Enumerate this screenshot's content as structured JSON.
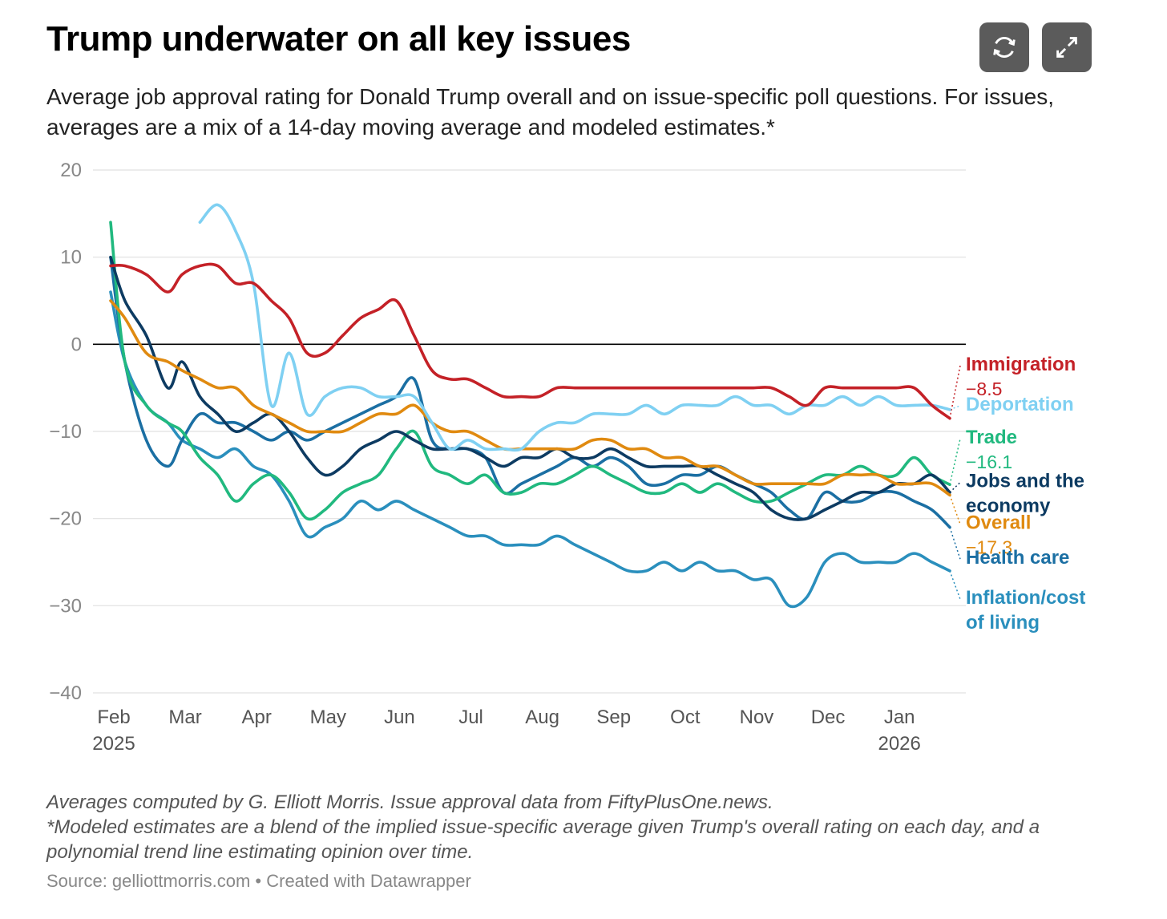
{
  "header": {
    "title": "Trump underwater on all key issues",
    "subtitle": "Average job approval rating for Donald Trump overall and on issue-specific poll questions. For issues, averages are a mix of a 14-day moving average and modeled estimates.*"
  },
  "buttons": {
    "refresh_icon": "refresh-icon",
    "expand_icon": "expand-icon"
  },
  "footer": {
    "note1": "Averages computed by G. Elliott Morris. Issue approval data from FiftyPlusOne.news.",
    "note2": "*Modeled estimates are a blend of the implied issue-specific average given Trump's overall rating on each day, and a polynomial trend line estimating opinion over time.",
    "source": "Source: gelliottmorris.com • Created with Datawrapper"
  },
  "chart_data": {
    "type": "line",
    "title": "Trump underwater on all key issues",
    "xlabel": "",
    "ylabel": "",
    "ylim": [
      -40,
      20
    ],
    "yticks": [
      20,
      10,
      0,
      -10,
      -20,
      -30,
      -40
    ],
    "ytick_labels": [
      "20",
      "10",
      "0",
      "−10",
      "−20",
      "−30",
      "−40"
    ],
    "xlim": [
      1,
      12.75
    ],
    "x_ticks": [
      {
        "x": 1,
        "label": "Feb",
        "year": "2025"
      },
      {
        "x": 2,
        "label": "Mar",
        "year": ""
      },
      {
        "x": 3,
        "label": "Apr",
        "year": ""
      },
      {
        "x": 4,
        "label": "May",
        "year": ""
      },
      {
        "x": 5,
        "label": "Jun",
        "year": ""
      },
      {
        "x": 6,
        "label": "Jul",
        "year": ""
      },
      {
        "x": 7,
        "label": "Aug",
        "year": ""
      },
      {
        "x": 8,
        "label": "Sep",
        "year": ""
      },
      {
        "x": 9,
        "label": "Oct",
        "year": ""
      },
      {
        "x": 10,
        "label": "Nov",
        "year": ""
      },
      {
        "x": 11,
        "label": "Dec",
        "year": ""
      },
      {
        "x": 12,
        "label": "Jan",
        "year": "2026"
      }
    ],
    "x_unit": "months since Feb 1, 2025 (Feb = 1)",
    "series": [
      {
        "name": "Inflation/cost of living",
        "label": "Inflation/cost of living",
        "value_label": "",
        "color": "#2a8fbd",
        "x": [
          1.0,
          1.2,
          1.5,
          1.8,
          2.0,
          2.25,
          2.5,
          2.75,
          3.0,
          3.25,
          3.5,
          3.75,
          4.0,
          4.25,
          4.5,
          4.75,
          5.0,
          5.25,
          5.5,
          5.75,
          6.0,
          6.25,
          6.5,
          6.75,
          7.0,
          7.25,
          7.5,
          7.75,
          8.0,
          8.25,
          8.5,
          8.75,
          9.0,
          9.25,
          9.5,
          9.75,
          10.0,
          10.25,
          10.5,
          10.75,
          11.0,
          11.25,
          11.5,
          11.75,
          12.0,
          12.25,
          12.5,
          12.75
        ],
        "y": [
          6,
          -2,
          -7,
          -9,
          -11,
          -12,
          -13,
          -12,
          -14,
          -15,
          -18,
          -22,
          -21,
          -20,
          -18,
          -19,
          -18,
          -19,
          -20,
          -21,
          -22,
          -22,
          -23,
          -23,
          -23,
          -22,
          -23,
          -24,
          -25,
          -26,
          -26,
          -25,
          -26,
          -25,
          -26,
          -26,
          -27,
          -27,
          -30,
          -29,
          -25,
          -24,
          -25,
          -25,
          -25,
          -24,
          -25,
          -26
        ]
      },
      {
        "name": "Health care",
        "label": "Health care",
        "value_label": "",
        "color": "#1b6fa3",
        "x": [
          1.0,
          1.2,
          1.5,
          1.8,
          2.0,
          2.25,
          2.5,
          2.75,
          3.0,
          3.25,
          3.5,
          3.75,
          4.0,
          4.25,
          4.5,
          4.75,
          5.0,
          5.25,
          5.5,
          5.75,
          6.0,
          6.25,
          6.5,
          6.75,
          7.0,
          7.25,
          7.5,
          7.75,
          8.0,
          8.25,
          8.5,
          8.75,
          9.0,
          9.25,
          9.5,
          9.75,
          10.0,
          10.25,
          10.5,
          10.75,
          11.0,
          11.25,
          11.5,
          11.75,
          12.0,
          12.25,
          12.5,
          12.75
        ],
        "y": [
          10,
          -2,
          -11,
          -14,
          -11,
          -8,
          -9,
          -9,
          -10,
          -11,
          -10,
          -11,
          -10,
          -9,
          -8,
          -7,
          -6,
          -4,
          -11,
          -12,
          -12,
          -13,
          -17,
          -16,
          -15,
          -14,
          -13,
          -14,
          -13,
          -14,
          -16,
          -16,
          -15,
          -15,
          -14,
          -15,
          -16,
          -17,
          -19,
          -20,
          -17,
          -18,
          -18,
          -17,
          -17,
          -18,
          -19,
          -21
        ]
      },
      {
        "name": "Trade",
        "label": "Trade",
        "value_label": "−16.1",
        "color": "#21b97f",
        "x": [
          1.0,
          1.2,
          1.5,
          1.8,
          2.0,
          2.25,
          2.5,
          2.75,
          3.0,
          3.25,
          3.5,
          3.75,
          4.0,
          4.25,
          4.5,
          4.75,
          5.0,
          5.25,
          5.5,
          5.75,
          6.0,
          6.25,
          6.5,
          6.75,
          7.0,
          7.25,
          7.5,
          7.75,
          8.0,
          8.25,
          8.5,
          8.75,
          9.0,
          9.25,
          9.5,
          9.75,
          10.0,
          10.25,
          10.5,
          10.75,
          11.0,
          11.25,
          11.5,
          11.75,
          12.0,
          12.25,
          12.5,
          12.75
        ],
        "y": [
          14,
          -2,
          -7,
          -9,
          -10,
          -13,
          -15,
          -18,
          -16,
          -15,
          -17,
          -20,
          -19,
          -17,
          -16,
          -15,
          -12,
          -10,
          -14,
          -15,
          -16,
          -15,
          -17,
          -17,
          -16,
          -16,
          -15,
          -14,
          -15,
          -16,
          -17,
          -17,
          -16,
          -17,
          -16,
          -17,
          -18,
          -18,
          -17,
          -16,
          -15,
          -15,
          -14,
          -15,
          -15,
          -13,
          -15,
          -16.1
        ]
      },
      {
        "name": "Jobs and the economy",
        "label": "Jobs and the economy",
        "value_label": "",
        "color": "#0d3b62",
        "x": [
          1.0,
          1.2,
          1.5,
          1.8,
          2.0,
          2.25,
          2.5,
          2.75,
          3.0,
          3.25,
          3.5,
          3.75,
          4.0,
          4.25,
          4.5,
          4.75,
          5.0,
          5.25,
          5.5,
          5.75,
          6.0,
          6.25,
          6.5,
          6.75,
          7.0,
          7.25,
          7.5,
          7.75,
          8.0,
          8.25,
          8.5,
          8.75,
          9.0,
          9.25,
          9.5,
          9.75,
          10.0,
          10.25,
          10.5,
          10.75,
          11.0,
          11.25,
          11.5,
          11.75,
          12.0,
          12.25,
          12.5,
          12.75
        ],
        "y": [
          10,
          5,
          1,
          -5,
          -2,
          -6,
          -8,
          -10,
          -9,
          -8,
          -10,
          -13,
          -15,
          -14,
          -12,
          -11,
          -10,
          -11,
          -12,
          -12,
          -12,
          -13,
          -14,
          -13,
          -13,
          -12,
          -13,
          -13,
          -12,
          -13,
          -14,
          -14,
          -14,
          -14,
          -15,
          -16,
          -17,
          -19,
          -20,
          -20,
          -19,
          -18,
          -17,
          -17,
          -16,
          -16,
          -15,
          -17
        ]
      },
      {
        "name": "Overall",
        "label": "Overall",
        "value_label": "−17.3",
        "color": "#e08a10",
        "x": [
          1.0,
          1.2,
          1.5,
          1.8,
          2.0,
          2.25,
          2.5,
          2.75,
          3.0,
          3.25,
          3.5,
          3.75,
          4.0,
          4.25,
          4.5,
          4.75,
          5.0,
          5.25,
          5.5,
          5.75,
          6.0,
          6.25,
          6.5,
          6.75,
          7.0,
          7.25,
          7.5,
          7.75,
          8.0,
          8.25,
          8.5,
          8.75,
          9.0,
          9.25,
          9.5,
          9.75,
          10.0,
          10.25,
          10.5,
          10.75,
          11.0,
          11.25,
          11.5,
          11.75,
          12.0,
          12.25,
          12.5,
          12.75
        ],
        "y": [
          5,
          3,
          -1,
          -2,
          -3,
          -4,
          -5,
          -5,
          -7,
          -8,
          -9,
          -10,
          -10,
          -10,
          -9,
          -8,
          -8,
          -7,
          -9,
          -10,
          -10,
          -11,
          -12,
          -12,
          -12,
          -12,
          -12,
          -11,
          -11,
          -12,
          -12,
          -13,
          -13,
          -14,
          -14,
          -15,
          -16,
          -16,
          -16,
          -16,
          -16,
          -15,
          -15,
          -15,
          -16,
          -16,
          -16,
          -17.3
        ]
      },
      {
        "name": "Deportation",
        "label": "Deportation",
        "value_label": "",
        "color": "#7fd0f2",
        "x": [
          2.25,
          2.5,
          2.75,
          3.0,
          3.25,
          3.5,
          3.75,
          4.0,
          4.25,
          4.5,
          4.75,
          5.0,
          5.25,
          5.5,
          5.75,
          6.0,
          6.25,
          6.5,
          6.75,
          7.0,
          7.25,
          7.5,
          7.75,
          8.0,
          8.25,
          8.5,
          8.75,
          9.0,
          9.25,
          9.5,
          9.75,
          10.0,
          10.25,
          10.5,
          10.75,
          11.0,
          11.25,
          11.5,
          11.75,
          12.0,
          12.25,
          12.5,
          12.75
        ],
        "y": [
          14,
          16,
          13,
          7,
          -7,
          -1,
          -8,
          -6,
          -5,
          -5,
          -6,
          -6,
          -6,
          -9,
          -12,
          -11,
          -12,
          -12,
          -12,
          -10,
          -9,
          -9,
          -8,
          -8,
          -8,
          -7,
          -8,
          -7,
          -7,
          -7,
          -6,
          -7,
          -7,
          -8,
          -7,
          -7,
          -6,
          -7,
          -6,
          -7,
          -7,
          -7,
          -7.5
        ]
      },
      {
        "name": "Immigration",
        "label": "Immigration",
        "value_label": "−8.5",
        "color": "#c42127",
        "x": [
          1.0,
          1.2,
          1.5,
          1.8,
          2.0,
          2.25,
          2.5,
          2.75,
          3.0,
          3.25,
          3.5,
          3.75,
          4.0,
          4.25,
          4.5,
          4.75,
          5.0,
          5.25,
          5.5,
          5.75,
          6.0,
          6.25,
          6.5,
          6.75,
          7.0,
          7.25,
          7.5,
          7.75,
          8.0,
          8.25,
          8.5,
          8.75,
          9.0,
          9.25,
          9.5,
          9.75,
          10.0,
          10.25,
          10.5,
          10.75,
          11.0,
          11.25,
          11.5,
          11.75,
          12.0,
          12.25,
          12.5,
          12.75
        ],
        "y": [
          9,
          9,
          8,
          6,
          8,
          9,
          9,
          7,
          7,
          5,
          3,
          -1,
          -1,
          1,
          3,
          4,
          5,
          1,
          -3,
          -4,
          -4,
          -5,
          -6,
          -6,
          -6,
          -5,
          -5,
          -5,
          -5,
          -5,
          -5,
          -5,
          -5,
          -5,
          -5,
          -5,
          -5,
          -5,
          -6,
          -7,
          -5,
          -5,
          -5,
          -5,
          -5,
          -5,
          -7,
          -8.5
        ]
      }
    ],
    "end_labels": [
      {
        "series": "Immigration",
        "lines": [
          "Immigration"
        ],
        "value": "−8.5",
        "label_y": -3.0
      },
      {
        "series": "Deportation",
        "lines": [
          "Deportation"
        ],
        "value": "",
        "label_y": -7.6
      },
      {
        "series": "Trade",
        "lines": [
          "Trade"
        ],
        "value": "−16.1",
        "label_y": -11.4
      },
      {
        "series": "Jobs and the economy",
        "lines": [
          "Jobs and the",
          "economy"
        ],
        "value": "",
        "label_y": -16.4
      },
      {
        "series": "Overall",
        "lines": [
          "Overall"
        ],
        "value": "−17.3",
        "label_y": -21.2
      },
      {
        "series": "Health care",
        "lines": [
          "Health care"
        ],
        "value": "",
        "label_y": -25.2
      },
      {
        "series": "Inflation/cost of living",
        "lines": [
          "Inflation/cost",
          "of living"
        ],
        "value": "",
        "label_y": -29.8
      }
    ]
  }
}
